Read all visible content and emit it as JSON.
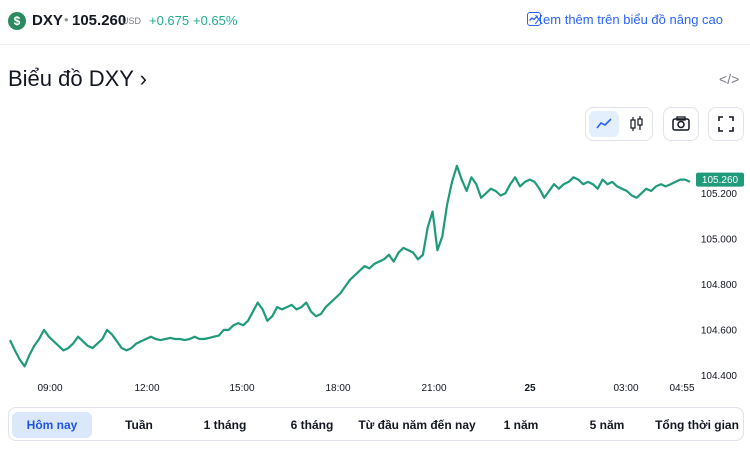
{
  "header": {
    "currency_symbol": "$",
    "ticker": "DXY",
    "separator": "•",
    "price": "105.260",
    "currency": "USD",
    "change": "+0.675",
    "change_percent": "+0.65%",
    "advanced_link": "Xem thêm trên biểu đồ nâng cao"
  },
  "title": "Biểu đồ DXY ›",
  "embed_icon_label": "</>",
  "toolbar": {
    "icons": [
      "line-chart-icon",
      "candlestick-icon",
      "camera-icon",
      "fullscreen-icon"
    ]
  },
  "price_tag": "105.260",
  "colors": {
    "line": "#1f9a7a",
    "accent": "#2962ff",
    "positive": "#22ab94"
  },
  "chart_data": {
    "type": "line",
    "x_labels": [
      "09:00",
      "12:00",
      "15:00",
      "18:00",
      "21:00",
      "25",
      "03:00",
      "04:55"
    ],
    "y_ticks": [
      "105.200",
      "105.000",
      "104.800",
      "104.600",
      "104.400"
    ],
    "ylim": [
      104.38,
      105.39
    ],
    "last_value": 105.26,
    "series": [
      {
        "values": [
          104.555,
          104.51,
          104.47,
          104.44,
          104.49,
          104.53,
          104.56,
          104.6,
          104.57,
          104.55,
          104.53,
          104.51,
          104.52,
          104.54,
          104.57,
          104.55,
          104.53,
          104.52,
          104.54,
          104.56,
          104.6,
          104.58,
          104.55,
          104.52,
          104.51,
          104.52,
          104.54,
          104.55,
          104.56,
          104.57,
          104.56,
          104.555,
          104.56,
          104.565,
          104.56,
          104.56,
          104.555,
          104.56,
          104.57,
          104.56,
          104.56,
          104.565,
          104.57,
          104.575,
          104.6,
          104.6,
          104.62,
          104.63,
          104.62,
          104.64,
          104.68,
          104.72,
          104.69,
          104.64,
          104.66,
          104.7,
          104.69,
          104.7,
          104.71,
          104.69,
          104.7,
          104.72,
          104.68,
          104.66,
          104.67,
          104.7,
          104.72,
          104.74,
          104.76,
          104.79,
          104.82,
          104.84,
          104.86,
          104.88,
          104.87,
          104.89,
          104.9,
          104.91,
          104.93,
          104.9,
          104.94,
          104.96,
          104.95,
          104.94,
          104.91,
          104.93,
          105.05,
          105.12,
          104.95,
          105.01,
          105.15,
          105.25,
          105.32,
          105.26,
          105.21,
          105.27,
          105.24,
          105.18,
          105.2,
          105.22,
          105.21,
          105.19,
          105.2,
          105.24,
          105.27,
          105.23,
          105.25,
          105.26,
          105.25,
          105.22,
          105.18,
          105.21,
          105.24,
          105.22,
          105.24,
          105.25,
          105.27,
          105.26,
          105.24,
          105.25,
          105.24,
          105.22,
          105.26,
          105.24,
          105.25,
          105.23,
          105.22,
          105.21,
          105.19,
          105.18,
          105.2,
          105.22,
          105.21,
          105.23,
          105.24,
          105.23,
          105.24,
          105.25,
          105.26,
          105.26,
          105.25
        ]
      }
    ]
  },
  "tabs": [
    {
      "label": "Hôm nay",
      "active": true
    },
    {
      "label": "Tuần",
      "active": false
    },
    {
      "label": "1 tháng",
      "active": false
    },
    {
      "label": "6 tháng",
      "active": false
    },
    {
      "label": "Từ đầu năm đến nay",
      "active": false
    },
    {
      "label": "1 năm",
      "active": false
    },
    {
      "label": "5 năm",
      "active": false
    },
    {
      "label": "Tổng thời gian",
      "active": false
    }
  ]
}
